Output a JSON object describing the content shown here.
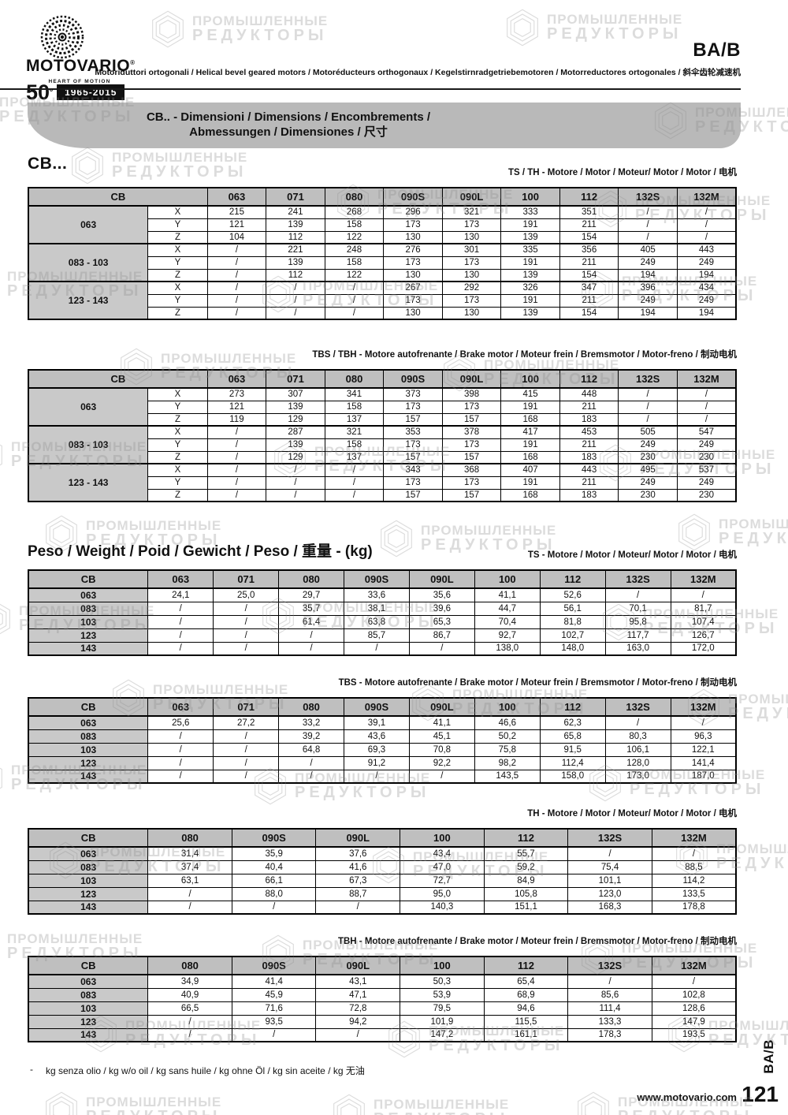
{
  "page": {
    "product_code": "BA/B",
    "subtitle": "Motoriduttori ortogonali / Helical bevel geared motors / Motoréducteurs orthogonaux / Kegelstirnradgetriebemotoren / Motorreductores ortogonales / 斜伞齿轮减速机",
    "brand": {
      "name": "MOTOVARIO",
      "registered": "®",
      "tagline": "HEART OF MOTION",
      "anniversary_number": "50",
      "anniversary_sup": "º",
      "anniversary_years": "1965-2015"
    },
    "banner": {
      "line1": "CB.. - Dimensioni / Dimensions / Encombrements /",
      "line2": "Abmessungen / Dimensiones / 尺寸"
    },
    "watermark": {
      "line1": "ПРОМЫШЛЕННЫЕ",
      "line2": "РЕДУКТОРЫ"
    },
    "footer": {
      "note_dash": "-",
      "note": "kg senza olio / kg w/o oil / kg sans huile / kg ohne Öl / kg sin aceite / kg 无油",
      "website": "www.motovario.com",
      "page_number": "121",
      "side_label": "BA/B"
    },
    "colors": {
      "table_header_bg": "#bfbfbf",
      "row_label_bg": "#c9c9c9",
      "banner_bg": "#b9b9b9",
      "ink": "#111111"
    }
  },
  "dimensions_section": {
    "heading": "CB...",
    "tables": [
      {
        "caption": "TS / TH - Motore / Motor / Moteur/ Motor / Motor / 电机",
        "header": [
          "CB",
          "063",
          "071",
          "080",
          "090S",
          "090L",
          "100",
          "112",
          "132S",
          "132M"
        ],
        "groups": [
          {
            "label": "063",
            "rows": [
              {
                "axis": "X",
                "values": [
                  "215",
                  "241",
                  "268",
                  "296",
                  "321",
                  "333",
                  "351",
                  "/",
                  "/"
                ]
              },
              {
                "axis": "Y",
                "values": [
                  "121",
                  "139",
                  "158",
                  "173",
                  "173",
                  "191",
                  "211",
                  "/",
                  "/"
                ]
              },
              {
                "axis": "Z",
                "values": [
                  "104",
                  "112",
                  "122",
                  "130",
                  "130",
                  "139",
                  "154",
                  "/",
                  "/"
                ]
              }
            ]
          },
          {
            "label": "083 - 103",
            "rows": [
              {
                "axis": "X",
                "values": [
                  "/",
                  "221",
                  "248",
                  "276",
                  "301",
                  "335",
                  "356",
                  "405",
                  "443"
                ]
              },
              {
                "axis": "Y",
                "values": [
                  "/",
                  "139",
                  "158",
                  "173",
                  "173",
                  "191",
                  "211",
                  "249",
                  "249"
                ]
              },
              {
                "axis": "Z",
                "values": [
                  "/",
                  "112",
                  "122",
                  "130",
                  "130",
                  "139",
                  "154",
                  "194",
                  "194"
                ]
              }
            ]
          },
          {
            "label": "123 - 143",
            "rows": [
              {
                "axis": "X",
                "values": [
                  "/",
                  "/",
                  "/",
                  "267",
                  "292",
                  "326",
                  "347",
                  "396",
                  "434"
                ]
              },
              {
                "axis": "Y",
                "values": [
                  "/",
                  "/",
                  "/",
                  "173",
                  "173",
                  "191",
                  "211",
                  "249",
                  "249"
                ]
              },
              {
                "axis": "Z",
                "values": [
                  "/",
                  "/",
                  "/",
                  "130",
                  "130",
                  "139",
                  "154",
                  "194",
                  "194"
                ]
              }
            ]
          }
        ]
      },
      {
        "caption": "TBS / TBH - Motore autofrenante / Brake motor / Moteur frein / Bremsmotor / Motor-freno / 制动电机",
        "header": [
          "CB",
          "063",
          "071",
          "080",
          "090S",
          "090L",
          "100",
          "112",
          "132S",
          "132M"
        ],
        "groups": [
          {
            "label": "063",
            "rows": [
              {
                "axis": "X",
                "values": [
                  "273",
                  "307",
                  "341",
                  "373",
                  "398",
                  "415",
                  "448",
                  "/",
                  "/"
                ]
              },
              {
                "axis": "Y",
                "values": [
                  "121",
                  "139",
                  "158",
                  "173",
                  "173",
                  "191",
                  "211",
                  "/",
                  "/"
                ]
              },
              {
                "axis": "Z",
                "values": [
                  "119",
                  "129",
                  "137",
                  "157",
                  "157",
                  "168",
                  "183",
                  "/",
                  "/"
                ]
              }
            ]
          },
          {
            "label": "083 - 103",
            "rows": [
              {
                "axis": "X",
                "values": [
                  "/",
                  "287",
                  "321",
                  "353",
                  "378",
                  "417",
                  "453",
                  "505",
                  "547"
                ]
              },
              {
                "axis": "Y",
                "values": [
                  "/",
                  "139",
                  "158",
                  "173",
                  "173",
                  "191",
                  "211",
                  "249",
                  "249"
                ]
              },
              {
                "axis": "Z",
                "values": [
                  "/",
                  "129",
                  "137",
                  "157",
                  "157",
                  "168",
                  "183",
                  "230",
                  "230"
                ]
              }
            ]
          },
          {
            "label": "123 - 143",
            "rows": [
              {
                "axis": "X",
                "values": [
                  "/",
                  "/",
                  "/",
                  "343",
                  "368",
                  "407",
                  "443",
                  "495",
                  "537"
                ]
              },
              {
                "axis": "Y",
                "values": [
                  "/",
                  "/",
                  "/",
                  "173",
                  "173",
                  "191",
                  "211",
                  "249",
                  "249"
                ]
              },
              {
                "axis": "Z",
                "values": [
                  "/",
                  "/",
                  "/",
                  "157",
                  "157",
                  "168",
                  "183",
                  "230",
                  "230"
                ]
              }
            ]
          }
        ]
      }
    ]
  },
  "weights_section": {
    "heading": "Peso / Weight / Poid / Gewicht / Peso / 重量 - (kg)",
    "tables": [
      {
        "caption": "TS - Motore / Motor / Moteur/ Motor / Motor / 电机",
        "header": [
          "CB",
          "063",
          "071",
          "080",
          "090S",
          "090L",
          "100",
          "112",
          "132S",
          "132M"
        ],
        "rows": [
          {
            "label": "063",
            "values": [
              "24,1",
              "25,0",
              "29,7",
              "33,6",
              "35,6",
              "41,1",
              "52,6",
              "/",
              "/"
            ]
          },
          {
            "label": "083",
            "values": [
              "/",
              "/",
              "35,7",
              "38,1",
              "39,6",
              "44,7",
              "56,1",
              "70,1",
              "81,7"
            ]
          },
          {
            "label": "103",
            "values": [
              "/",
              "/",
              "61,4",
              "63,8",
              "65,3",
              "70,4",
              "81,8",
              "95,8",
              "107,4"
            ]
          },
          {
            "label": "123",
            "values": [
              "/",
              "/",
              "/",
              "85,7",
              "86,7",
              "92,7",
              "102,7",
              "117,7",
              "126,7"
            ]
          },
          {
            "label": "143",
            "values": [
              "/",
              "/",
              "/",
              "/",
              "/",
              "138,0",
              "148,0",
              "163,0",
              "172,0"
            ]
          }
        ]
      },
      {
        "caption": "TBS - Motore autofrenante / Brake motor / Moteur frein / Bremsmotor / Motor-freno / 制动电机",
        "header": [
          "CB",
          "063",
          "071",
          "080",
          "090S",
          "090L",
          "100",
          "112",
          "132S",
          "132M"
        ],
        "rows": [
          {
            "label": "063",
            "values": [
              "25,6",
              "27,2",
              "33,2",
              "39,1",
              "41,1",
              "46,6",
              "62,3",
              "/",
              "/"
            ]
          },
          {
            "label": "083",
            "values": [
              "/",
              "/",
              "39,2",
              "43,6",
              "45,1",
              "50,2",
              "65,8",
              "80,3",
              "96,3"
            ]
          },
          {
            "label": "103",
            "values": [
              "/",
              "/",
              "64,8",
              "69,3",
              "70,8",
              "75,8",
              "91,5",
              "106,1",
              "122,1"
            ]
          },
          {
            "label": "123",
            "values": [
              "/",
              "/",
              "/",
              "91,2",
              "92,2",
              "98,2",
              "112,4",
              "128,0",
              "141,4"
            ]
          },
          {
            "label": "143",
            "values": [
              "/",
              "/",
              "/",
              "/",
              "/",
              "143,5",
              "158,0",
              "173,0",
              "187,0"
            ]
          }
        ]
      },
      {
        "caption": "TH - Motore / Motor / Moteur/ Motor / Motor / 电机",
        "header": [
          "CB",
          "080",
          "090S",
          "090L",
          "100",
          "112",
          "132S",
          "132M"
        ],
        "rows": [
          {
            "label": "063",
            "values": [
              "31,4",
              "35,9",
              "37,6",
              "43,4",
              "55,7",
              "/",
              "/"
            ]
          },
          {
            "label": "083",
            "values": [
              "37,4",
              "40,4",
              "41,6",
              "47,0",
              "59,2",
              "75,4",
              "88,5"
            ]
          },
          {
            "label": "103",
            "values": [
              "63,1",
              "66,1",
              "67,3",
              "72,7",
              "84,9",
              "101,1",
              "114,2"
            ]
          },
          {
            "label": "123",
            "values": [
              "/",
              "88,0",
              "88,7",
              "95,0",
              "105,8",
              "123,0",
              "133,5"
            ]
          },
          {
            "label": "143",
            "values": [
              "/",
              "/",
              "/",
              "140,3",
              "151,1",
              "168,3",
              "178,8"
            ]
          }
        ]
      },
      {
        "caption": "TBH - Motore autofrenante / Brake motor / Moteur frein / Bremsmotor / Motor-freno / 制动电机",
        "header": [
          "CB",
          "080",
          "090S",
          "090L",
          "100",
          "112",
          "132S",
          "132M"
        ],
        "rows": [
          {
            "label": "063",
            "values": [
              "34,9",
              "41,4",
              "43,1",
              "50,3",
              "65,4",
              "/",
              "/"
            ]
          },
          {
            "label": "083",
            "values": [
              "40,9",
              "45,9",
              "47,1",
              "53,9",
              "68,9",
              "85,6",
              "102,8"
            ]
          },
          {
            "label": "103",
            "values": [
              "66,5",
              "71,6",
              "72,8",
              "79,5",
              "94,6",
              "111,4",
              "128,6"
            ]
          },
          {
            "label": "123",
            "values": [
              "/",
              "93,5",
              "94,2",
              "101,9",
              "115,5",
              "133,3",
              "147,9"
            ]
          },
          {
            "label": "143",
            "values": [
              "/",
              "/",
              "/",
              "147,2",
              "161,1",
              "178,3",
              "193,5"
            ]
          }
        ]
      }
    ]
  }
}
